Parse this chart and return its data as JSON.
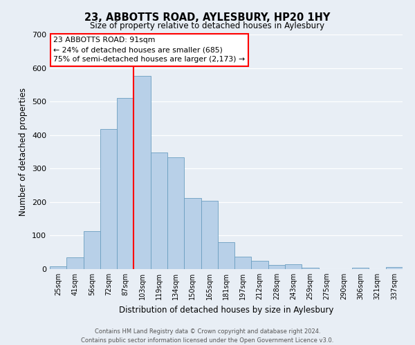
{
  "title": "23, ABBOTTS ROAD, AYLESBURY, HP20 1HY",
  "subtitle": "Size of property relative to detached houses in Aylesbury",
  "xlabel": "Distribution of detached houses by size in Aylesbury",
  "ylabel": "Number of detached properties",
  "bar_labels": [
    "25sqm",
    "41sqm",
    "56sqm",
    "72sqm",
    "87sqm",
    "103sqm",
    "119sqm",
    "134sqm",
    "150sqm",
    "165sqm",
    "181sqm",
    "197sqm",
    "212sqm",
    "228sqm",
    "243sqm",
    "259sqm",
    "275sqm",
    "290sqm",
    "306sqm",
    "321sqm",
    "337sqm"
  ],
  "bar_values": [
    8,
    36,
    113,
    418,
    510,
    577,
    347,
    333,
    212,
    204,
    80,
    38,
    25,
    13,
    14,
    5,
    0,
    0,
    5,
    0,
    7
  ],
  "bar_color": "#b8d0e8",
  "bar_edgecolor": "#6a9ec0",
  "vline_color": "red",
  "ylim": [
    0,
    700
  ],
  "yticks": [
    0,
    100,
    200,
    300,
    400,
    500,
    600,
    700
  ],
  "annotation_title": "23 ABBOTTS ROAD: 91sqm",
  "annotation_line1": "← 24% of detached houses are smaller (685)",
  "annotation_line2": "75% of semi-detached houses are larger (2,173) →",
  "annotation_box_color": "#ffffff",
  "annotation_box_edgecolor": "red",
  "footer_line1": "Contains HM Land Registry data © Crown copyright and database right 2024.",
  "footer_line2": "Contains public sector information licensed under the Open Government Licence v3.0.",
  "background_color": "#e8eef5",
  "grid_color": "#ffffff"
}
